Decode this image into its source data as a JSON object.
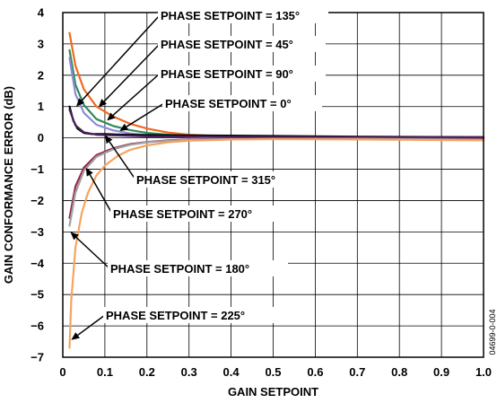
{
  "chart_data": {
    "type": "line",
    "xlabel": "GAIN SETPOINT",
    "ylabel": "GAIN CONFORMANCE ERROR (dB)",
    "xlim": [
      0,
      1.0
    ],
    "ylim": [
      -7,
      4
    ],
    "x_ticks": [
      "0",
      "0.1",
      "0.2",
      "0.3",
      "0.4",
      "0.5",
      "0.6",
      "0.7",
      "0.8",
      "0.9",
      "1.0"
    ],
    "y_ticks": [
      "4",
      "3",
      "2",
      "1",
      "0",
      "−1",
      "−2",
      "−3",
      "−4",
      "−5",
      "−6",
      "−7"
    ],
    "grid": true,
    "figure_id": "04699-0-004",
    "series": [
      {
        "name": "PHASE SETPOINT = 135°",
        "color": "#ef6a21",
        "x": [
          0.016,
          0.03,
          0.05,
          0.08,
          0.12,
          0.16,
          0.2,
          0.25,
          0.3,
          0.4,
          0.5,
          0.7,
          1.0
        ],
        "y": [
          3.35,
          2.3,
          1.55,
          1.0,
          0.68,
          0.45,
          0.3,
          0.17,
          0.1,
          0.04,
          0.02,
          0.0,
          -0.02
        ]
      },
      {
        "name": "PHASE SETPOINT = 45°",
        "color": "#2e8b57",
        "x": [
          0.016,
          0.03,
          0.05,
          0.08,
          0.12,
          0.16,
          0.2,
          0.25,
          0.3,
          0.4,
          0.5,
          0.7,
          1.0
        ],
        "y": [
          2.8,
          1.7,
          1.05,
          0.6,
          0.38,
          0.25,
          0.16,
          0.1,
          0.06,
          0.02,
          0.01,
          0.0,
          -0.01
        ]
      },
      {
        "name": "PHASE SETPOINT = 90°",
        "color": "#8e8ad8",
        "x": [
          0.016,
          0.03,
          0.05,
          0.08,
          0.12,
          0.16,
          0.2,
          0.25,
          0.3,
          0.4,
          0.5,
          0.7,
          1.0
        ],
        "y": [
          2.55,
          1.4,
          0.8,
          0.42,
          0.24,
          0.14,
          0.09,
          0.05,
          0.03,
          0.01,
          0.0,
          0.0,
          0.0
        ]
      },
      {
        "name": "PHASE SETPOINT = 0°",
        "color": "#000000",
        "x": [
          0.016,
          0.025,
          0.035,
          0.05,
          0.07,
          0.1,
          0.15,
          0.2,
          0.3,
          0.5,
          0.7,
          1.0
        ],
        "y": [
          1.0,
          0.55,
          0.3,
          0.16,
          0.12,
          0.12,
          0.1,
          0.09,
          0.08,
          0.06,
          0.04,
          0.02
        ]
      },
      {
        "name": "PHASE SETPOINT = 315°",
        "color": "#4a1f5e",
        "x": [
          0.016,
          0.03,
          0.05,
          0.08,
          0.12,
          0.2,
          0.3,
          0.5,
          0.7,
          1.0
        ],
        "y": [
          0.9,
          0.4,
          0.18,
          0.1,
          0.08,
          0.05,
          0.04,
          0.03,
          0.03,
          0.02
        ]
      },
      {
        "name": "PHASE SETPOINT = 270°",
        "color": "#9b2352",
        "x": [
          0.016,
          0.03,
          0.05,
          0.08,
          0.12,
          0.16,
          0.2,
          0.25,
          0.3,
          0.4,
          0.5,
          0.7,
          1.0
        ],
        "y": [
          -2.55,
          -1.55,
          -0.95,
          -0.55,
          -0.33,
          -0.2,
          -0.13,
          -0.08,
          -0.05,
          -0.03,
          -0.02,
          -0.02,
          -0.04
        ]
      },
      {
        "name": "PHASE SETPOINT = 180°",
        "color": "#a0a0a0",
        "x": [
          0.016,
          0.03,
          0.05,
          0.08,
          0.12,
          0.16,
          0.2,
          0.25,
          0.3,
          0.4,
          0.5,
          0.7,
          1.0
        ],
        "y": [
          -2.8,
          -1.75,
          -1.05,
          -0.6,
          -0.36,
          -0.22,
          -0.14,
          -0.09,
          -0.06,
          -0.04,
          -0.03,
          -0.03,
          -0.06
        ]
      },
      {
        "name": "PHASE SETPOINT = 225°",
        "color": "#f4a460",
        "x": [
          0.016,
          0.02,
          0.03,
          0.045,
          0.06,
          0.08,
          0.1,
          0.13,
          0.16,
          0.2,
          0.25,
          0.3,
          0.4,
          0.5,
          0.7,
          1.0
        ],
        "y": [
          -6.7,
          -5.2,
          -3.5,
          -2.4,
          -1.75,
          -1.2,
          -0.88,
          -0.58,
          -0.38,
          -0.24,
          -0.14,
          -0.09,
          -0.05,
          -0.04,
          -0.05,
          -0.08
        ]
      }
    ],
    "annotations": [
      {
        "text": "PHASE SETPOINT = 135°",
        "series": 0
      },
      {
        "text": "PHASE SETPOINT = 45°",
        "series": 1
      },
      {
        "text": "PHASE SETPOINT = 90°",
        "series": 2
      },
      {
        "text": "PHASE SETPOINT = 0°",
        "series": 3
      },
      {
        "text": "PHASE SETPOINT = 315°",
        "series": 4
      },
      {
        "text": "PHASE SETPOINT = 270°",
        "series": 5
      },
      {
        "text": "PHASE SETPOINT = 180°",
        "series": 6
      },
      {
        "text": "PHASE SETPOINT = 225°",
        "series": 7
      }
    ]
  }
}
